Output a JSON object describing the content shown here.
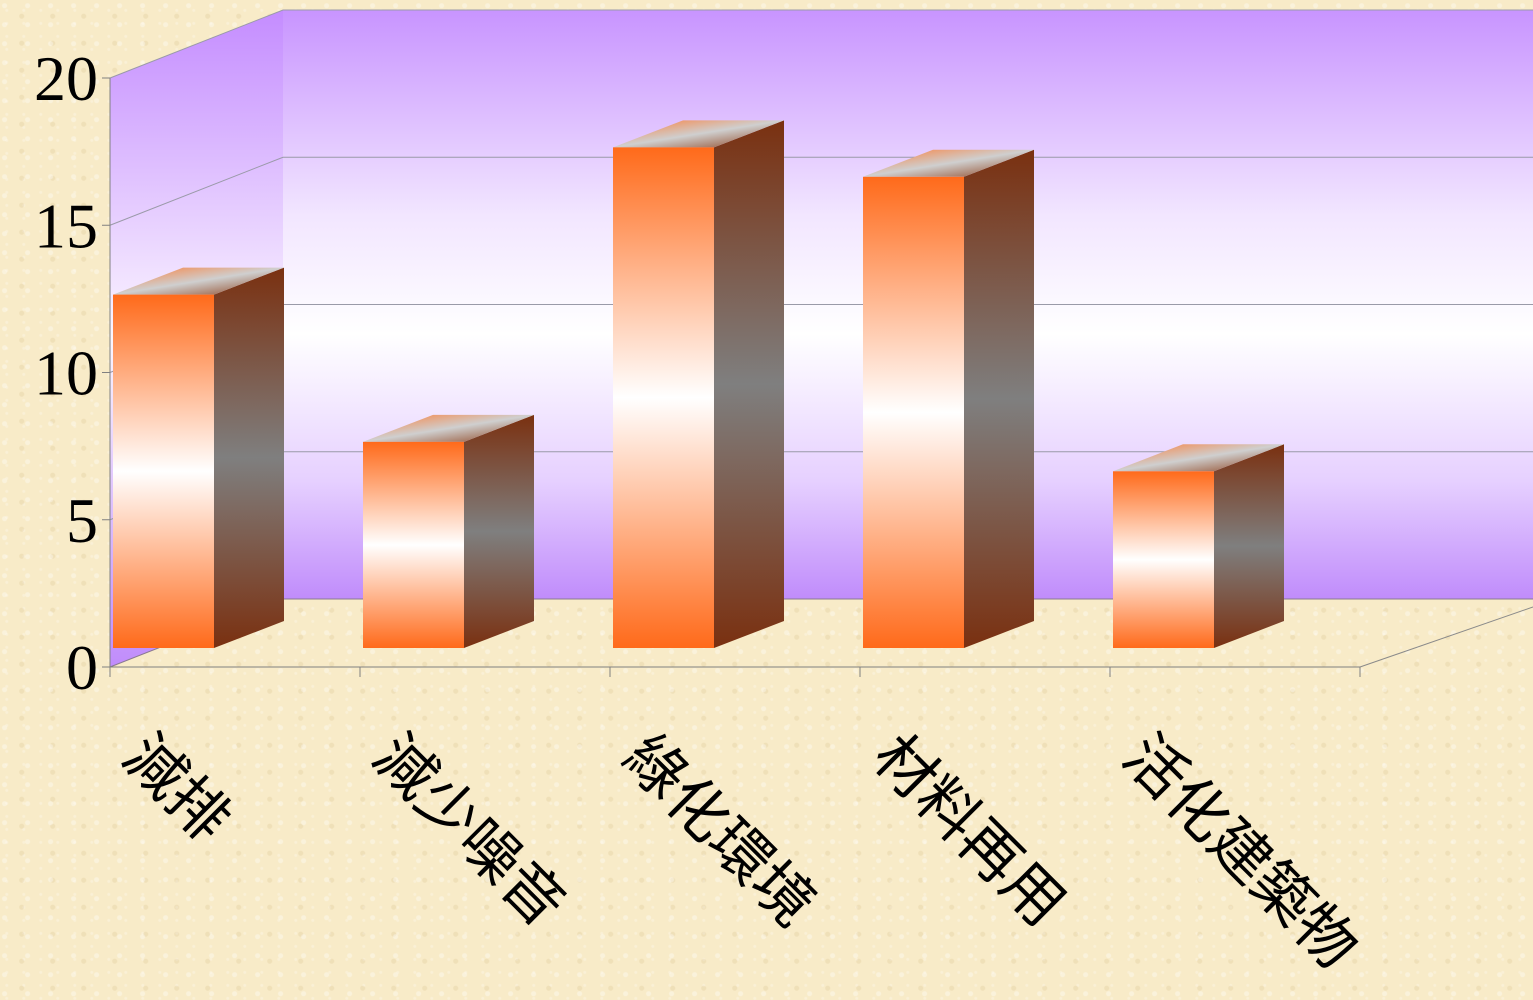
{
  "chart_data": {
    "type": "bar",
    "style": "3d-column",
    "categories": [
      "減排",
      "減少噪音",
      "綠化環境",
      "材料再用",
      "活化建築物"
    ],
    "values": [
      12,
      7,
      17,
      16,
      6
    ],
    "ylim": [
      0,
      20
    ],
    "yticks": [
      "0",
      "5",
      "10",
      "15",
      "20"
    ],
    "grid": true,
    "legend": false,
    "title": "",
    "xlabel": "",
    "ylabel": "",
    "colors": {
      "bar_front_edge": "#ff6a1a",
      "bar_side": "#7a3010",
      "bar_mid": "#ffffff",
      "wall_top": "#c993ff",
      "wall_mid": "#ffffff",
      "floor": "#f8ebc8"
    }
  }
}
